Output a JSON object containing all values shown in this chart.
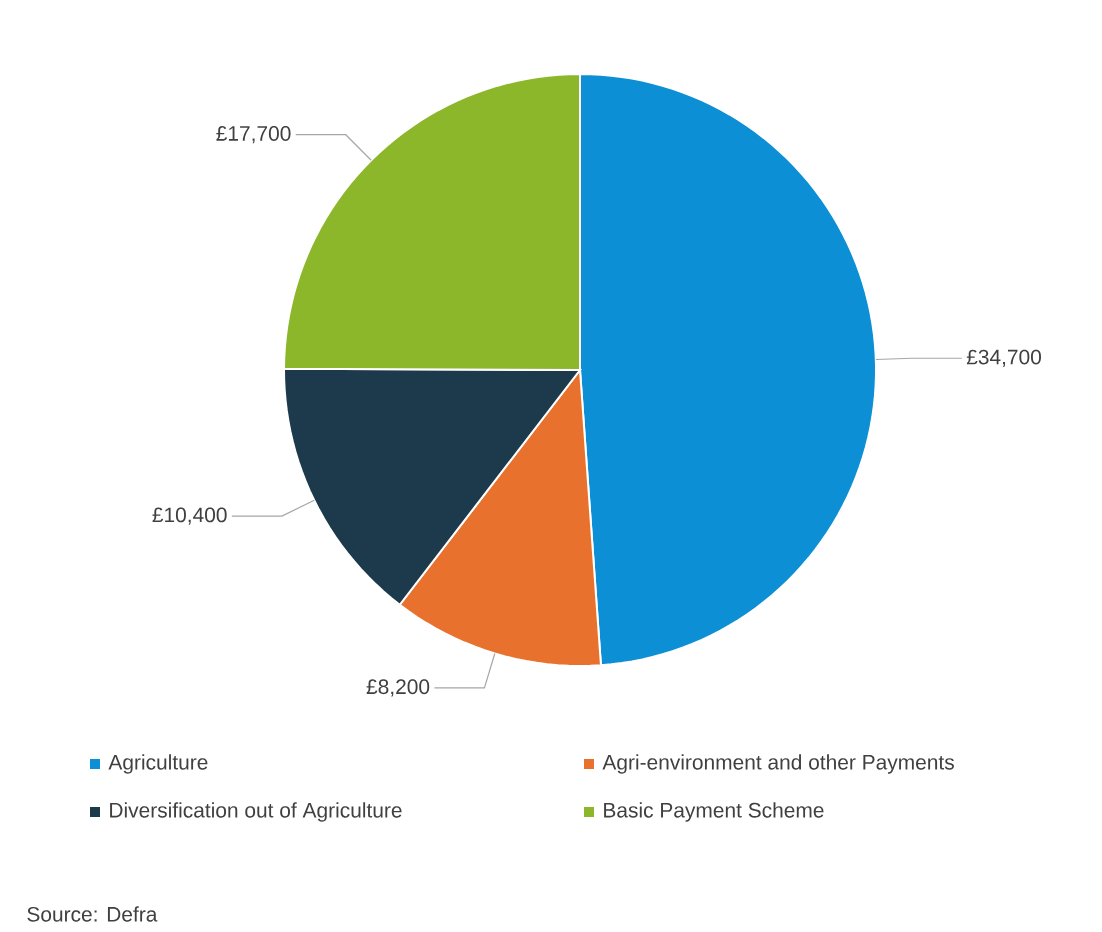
{
  "chart_data": {
    "type": "pie",
    "categories": [
      "Agriculture",
      "Agri-environment and other Payments",
      "Diversification out of Agriculture",
      "Basic Payment Scheme"
    ],
    "values": [
      34700,
      8200,
      10400,
      17700
    ],
    "colors": [
      "#0c8fd4",
      "#e8722d",
      "#1c3a4b",
      "#8db72b"
    ],
    "value_labels": [
      "£34,700",
      "£8,200",
      "£10,400",
      "£17,700"
    ],
    "legend": "bottom",
    "annotations": [
      "Source: Defra"
    ]
  }
}
